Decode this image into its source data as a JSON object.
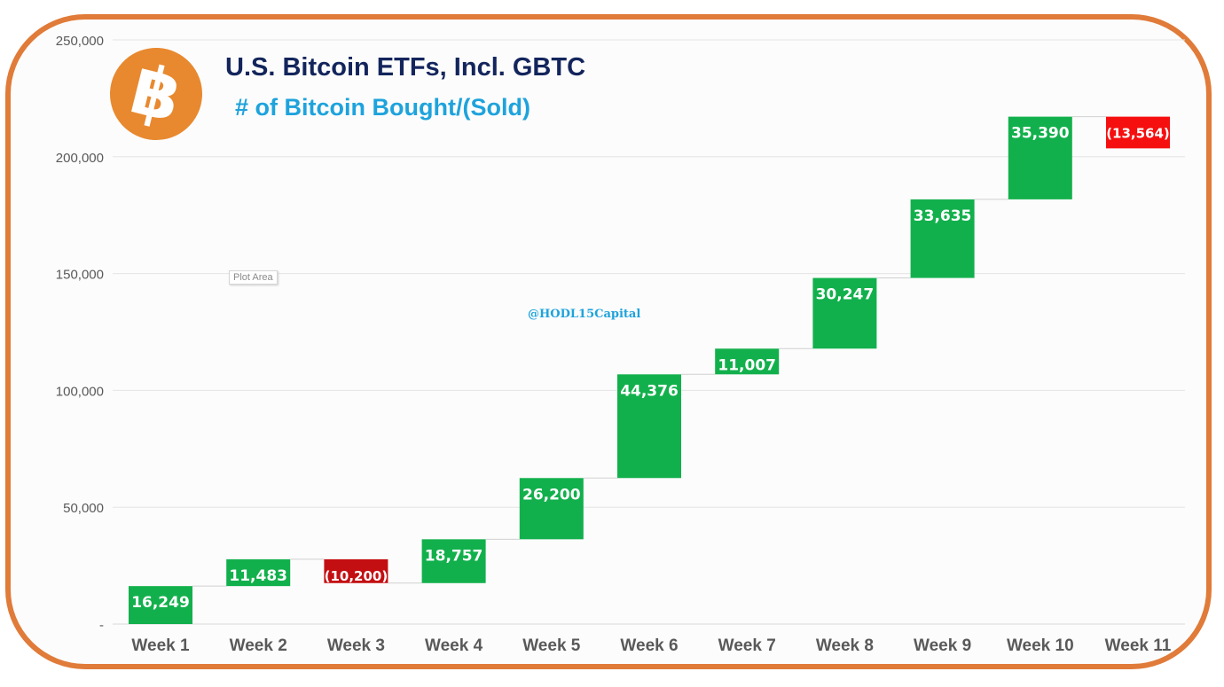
{
  "header": {
    "title": "U.S. Bitcoin ETFs, Incl. GBTC",
    "subtitle": "# of Bitcoin Bought/(Sold)",
    "logo_glyph": "฿",
    "watermark": "@HODL15Capital",
    "plot_area_tag": "Plot Area"
  },
  "colors": {
    "frame": "#e07b39",
    "positive": "#12b04c",
    "negative_week3": "#c40f12",
    "negative_week11": "#f50f0f",
    "title": "#13255c",
    "subtitle": "#1ea3dc",
    "grid": "#e4e4e4",
    "axis_text": "#595959",
    "logo": "#e8892f"
  },
  "chart_data": {
    "type": "bar",
    "subtype": "waterfall",
    "title": "U.S. Bitcoin ETFs, Incl. GBTC",
    "subtitle": "# of Bitcoin Bought/(Sold)",
    "categories": [
      "Week 1",
      "Week 2",
      "Week 3",
      "Week 4",
      "Week 5",
      "Week 6",
      "Week 7",
      "Week 8",
      "Week 9",
      "Week 10",
      "Week 11"
    ],
    "values": [
      16249,
      11483,
      -10200,
      18757,
      26200,
      44376,
      11007,
      30247,
      33635,
      35390,
      -13564
    ],
    "data_labels": [
      "16,249",
      "11,483",
      "(10,200)",
      "18,757",
      "26,200",
      "44,376",
      "11,007",
      "30,247",
      "33,635",
      "35,390",
      "(13,564)"
    ],
    "ylim": [
      0,
      250000
    ],
    "yticks": [
      0,
      50000,
      100000,
      150000,
      200000,
      250000
    ],
    "ytick_labels": [
      "-",
      "50,000",
      "100,000",
      "150,000",
      "200,000",
      "250,000"
    ],
    "xlabel": "",
    "ylabel": "",
    "grid": true,
    "legend": "none"
  }
}
